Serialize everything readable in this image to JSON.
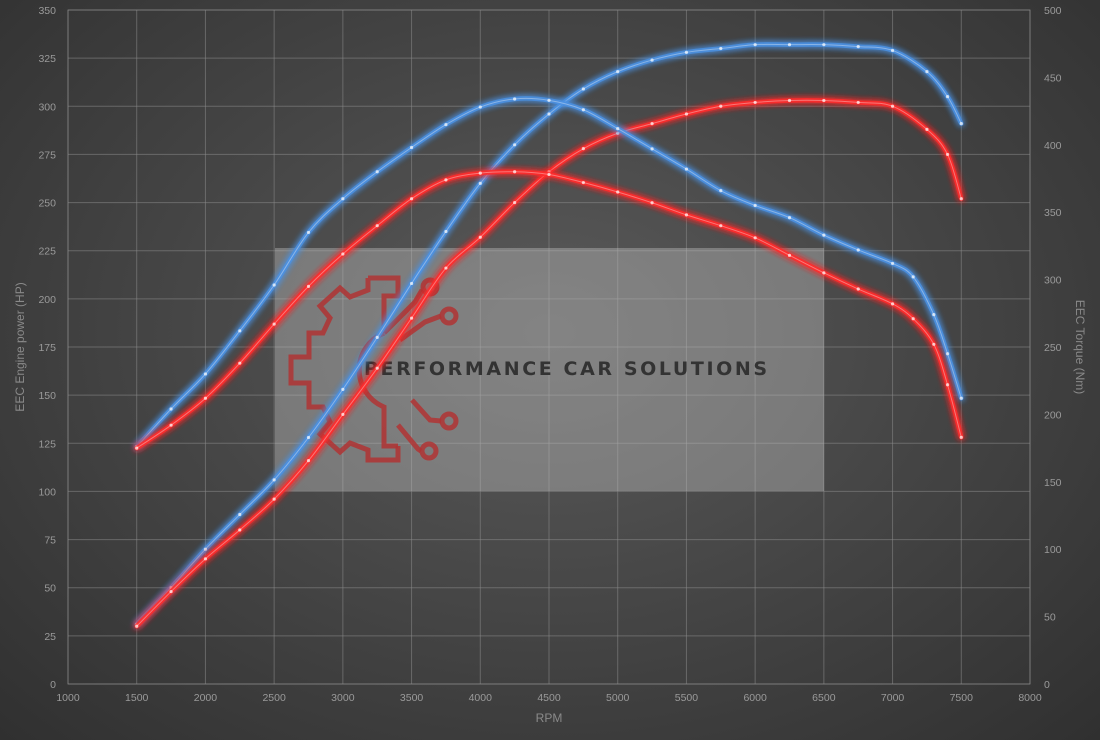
{
  "chart_data": {
    "type": "line",
    "xlabel": "RPM",
    "ylabel_left": "EEC Engine power (HP)",
    "ylabel_right": "EEC Torque (Nm)",
    "xlim": [
      1000,
      8000
    ],
    "ylim_left": [
      0,
      350
    ],
    "ylim_right": [
      0,
      500
    ],
    "x_ticks": [
      1000,
      1500,
      2000,
      2500,
      3000,
      3500,
      4000,
      4500,
      5000,
      5500,
      6000,
      6500,
      7000,
      7500,
      8000
    ],
    "y_ticks_left": [
      0,
      25,
      50,
      75,
      100,
      125,
      150,
      175,
      200,
      225,
      250,
      275,
      300,
      325,
      350
    ],
    "y_ticks_right": [
      0,
      50,
      100,
      150,
      200,
      250,
      300,
      350,
      400,
      450,
      500
    ],
    "grid": true,
    "series": [
      {
        "axis": "left",
        "color": "#4a90e2",
        "x": [
          1500,
          1750,
          2000,
          2250,
          2500,
          2750,
          3000,
          3250,
          3500,
          3750,
          4000,
          4250,
          4500,
          4750,
          5000,
          5250,
          5500,
          5750,
          6000,
          6250,
          6500,
          6750,
          7000,
          7250,
          7400,
          7500
        ],
        "values": [
          31,
          50,
          70,
          88,
          106,
          128,
          153,
          180,
          208,
          235,
          260,
          280,
          296,
          309,
          318,
          324,
          328,
          330,
          332,
          332,
          332,
          331,
          329,
          318,
          305,
          291
        ]
      },
      {
        "axis": "left",
        "color": "#ff2a2a",
        "x": [
          1500,
          1750,
          2000,
          2250,
          2500,
          2750,
          3000,
          3250,
          3500,
          3750,
          4000,
          4250,
          4500,
          4750,
          5000,
          5250,
          5500,
          5750,
          6000,
          6250,
          6500,
          6750,
          7000,
          7250,
          7400,
          7500
        ],
        "values": [
          30,
          48,
          65,
          80,
          96,
          116,
          140,
          164,
          190,
          216,
          232,
          250,
          266,
          278,
          286,
          291,
          296,
          300,
          302,
          303,
          303,
          302,
          300,
          288,
          275,
          252
        ]
      },
      {
        "axis": "right",
        "color": "#4a90e2",
        "x": [
          1500,
          1750,
          2000,
          2250,
          2500,
          2750,
          3000,
          3250,
          3500,
          3750,
          4000,
          4250,
          4500,
          4750,
          5000,
          5250,
          5500,
          5750,
          6000,
          6250,
          6500,
          6750,
          7000,
          7150,
          7300,
          7400,
          7500
        ],
        "values": [
          176,
          204,
          230,
          262,
          296,
          335,
          360,
          380,
          398,
          415,
          428,
          434,
          433,
          426,
          412,
          397,
          382,
          366,
          355,
          346,
          333,
          322,
          312,
          302,
          274,
          245,
          212
        ]
      },
      {
        "axis": "right",
        "color": "#ff2a2a",
        "x": [
          1500,
          1750,
          2000,
          2250,
          2500,
          2750,
          3000,
          3250,
          3500,
          3750,
          4000,
          4250,
          4500,
          4750,
          5000,
          5250,
          5500,
          5750,
          6000,
          6250,
          6500,
          6750,
          7000,
          7150,
          7300,
          7400,
          7500
        ],
        "values": [
          175,
          192,
          212,
          238,
          267,
          295,
          319,
          340,
          360,
          374,
          379,
          380,
          378,
          372,
          365,
          357,
          348,
          340,
          331,
          318,
          305,
          293,
          282,
          271,
          252,
          222,
          183
        ]
      }
    ]
  },
  "watermark": {
    "text": "PERFORMANCE CAR SOLUTIONS",
    "logo_color": "#b03434"
  }
}
